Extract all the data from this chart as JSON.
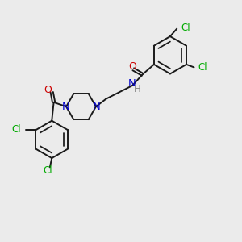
{
  "bg_color": "#ebebeb",
  "bond_color": "#1a1a1a",
  "N_color": "#0000cc",
  "O_color": "#cc0000",
  "Cl_color": "#00aa00",
  "H_color": "#888888",
  "lw": 1.4,
  "figsize": [
    3.0,
    3.0
  ],
  "dpi": 100,
  "xlim": [
    0,
    10
  ],
  "ylim": [
    0,
    10
  ]
}
